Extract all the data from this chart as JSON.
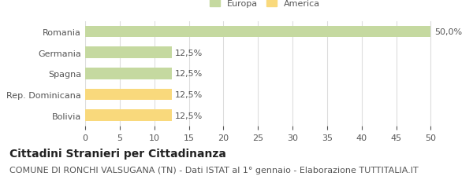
{
  "categories": [
    "Romania",
    "Germania",
    "Spagna",
    "Rep. Dominicana",
    "Bolivia"
  ],
  "values": [
    50.0,
    12.5,
    12.5,
    12.5,
    12.5
  ],
  "colors": [
    "#c5d9a0",
    "#c5d9a0",
    "#c5d9a0",
    "#f9d97c",
    "#f9d97c"
  ],
  "labels": [
    "50,0%",
    "12,5%",
    "12,5%",
    "12,5%",
    "12,5%"
  ],
  "xlim": [
    0,
    52
  ],
  "xticks": [
    0,
    5,
    10,
    15,
    20,
    25,
    30,
    35,
    40,
    45,
    50
  ],
  "legend_europa_color": "#c5d9a0",
  "legend_america_color": "#f9d97c",
  "legend_europa_label": "Europa",
  "legend_america_label": "America",
  "title_bold": "Cittadini Stranieri per Cittadinanza",
  "subtitle": "COMUNE DI RONCHI VALSUGANA (TN) - Dati ISTAT al 1° gennaio - Elaborazione TUTTITALIA.IT",
  "background_color": "#ffffff",
  "bar_edge_color": "none",
  "grid_color": "#dddddd",
  "label_fontsize": 8,
  "tick_fontsize": 8,
  "title_fontsize": 10,
  "subtitle_fontsize": 8
}
